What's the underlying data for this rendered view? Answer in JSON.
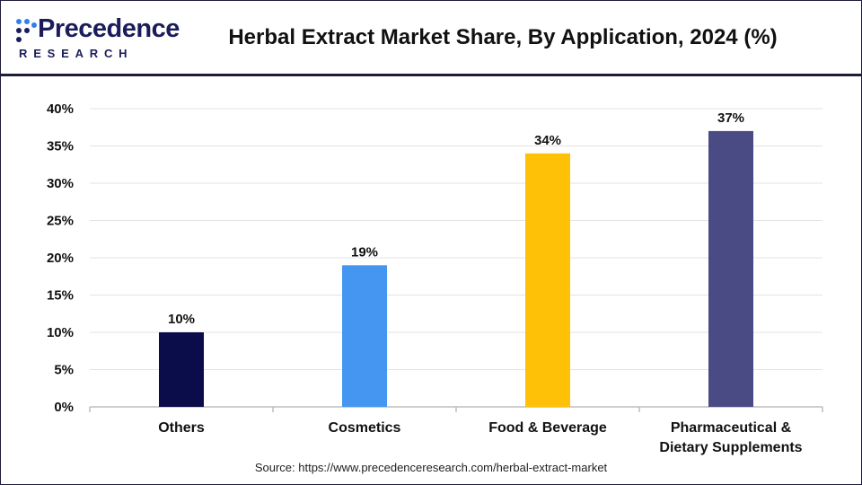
{
  "header": {
    "logo_text": "Precedence",
    "logo_subtext": "RESEARCH",
    "title": "Herbal Extract Market Share, By Application, 2024 (%)"
  },
  "source": "Source: https://www.precedenceresearch.com/herbal-extract-market",
  "colors": {
    "brand_navy": "#1b1d5b",
    "brand_blue": "#2f80ed",
    "grid": "#e3e3e3",
    "axis": "#bdbdbd"
  },
  "chart_data": {
    "type": "bar",
    "title": "Herbal Extract Market Share, By Application, 2024 (%)",
    "xlabel": "",
    "ylabel": "",
    "categories": [
      [
        "Others"
      ],
      [
        "Cosmetics"
      ],
      [
        "Food & Beverage"
      ],
      [
        "Pharmaceutical &",
        "Dietary Supplements"
      ]
    ],
    "values": [
      10,
      19,
      34,
      37
    ],
    "data_labels": [
      "10%",
      "19%",
      "34%",
      "37%"
    ],
    "bar_colors": [
      "#0b0c4a",
      "#4596f0",
      "#ffc107",
      "#4a4b85"
    ],
    "ylim": [
      0,
      40
    ],
    "yticks": [
      0,
      5,
      10,
      15,
      20,
      25,
      30,
      35,
      40
    ],
    "ytick_labels": [
      "0%",
      "5%",
      "10%",
      "15%",
      "20%",
      "25%",
      "30%",
      "35%",
      "40%"
    ],
    "grid": true,
    "legend": "none"
  }
}
